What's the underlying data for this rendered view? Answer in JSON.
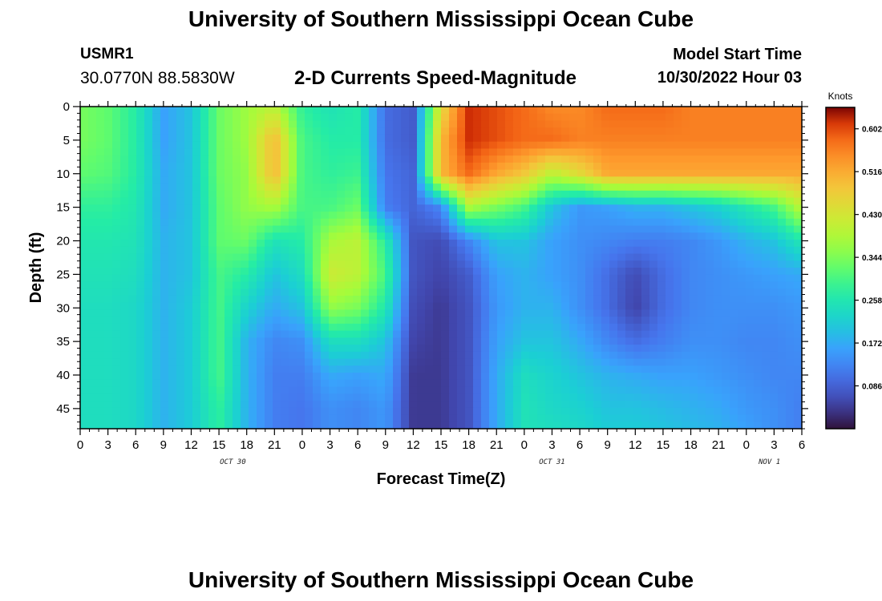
{
  "header": {
    "title": "University of Southern Mississippi Ocean Cube",
    "station_name": "USMR1",
    "station_coords": "30.0770N  88.5830W",
    "subtitle": "2-D Currents Speed-Magnitude",
    "model_start_label": "Model Start Time",
    "model_start_value": "10/30/2022 Hour 03"
  },
  "footer": {
    "title": "University of Southern Mississippi Ocean Cube"
  },
  "chart_data": {
    "type": "heatmap",
    "title": "2-D Currents Speed-Magnitude",
    "xlabel": "Forecast Time(Z)",
    "ylabel": "Depth (ft)",
    "x_unit": "hours from Oct 30 00Z",
    "x_range": [
      0,
      78
    ],
    "y_range": [
      0,
      48
    ],
    "y_inverted": true,
    "x_tick_values": [
      0,
      3,
      6,
      9,
      12,
      15,
      18,
      21,
      24,
      27,
      30,
      33,
      36,
      39,
      42,
      45,
      48,
      51,
      54,
      57,
      60,
      63,
      66,
      69,
      72,
      75,
      78
    ],
    "x_tick_labels": [
      "0",
      "3",
      "6",
      "9",
      "12",
      "15",
      "18",
      "21",
      "0",
      "3",
      "6",
      "9",
      "12",
      "15",
      "18",
      "21",
      "0",
      "3",
      "6",
      "9",
      "12",
      "15",
      "18",
      "21",
      "0",
      "3",
      "6"
    ],
    "y_tick_values": [
      0,
      5,
      10,
      15,
      20,
      25,
      30,
      35,
      40,
      45
    ],
    "y_tick_labels": [
      "0",
      "5",
      "10",
      "15",
      "20",
      "25",
      "30",
      "35",
      "40",
      "45"
    ],
    "date_labels": [
      {
        "text": "OCT 30",
        "x": 16.5
      },
      {
        "text": "OCT 31",
        "x": 51
      },
      {
        "text": "NOV 1",
        "x": 74.5
      }
    ],
    "colorbar": {
      "units": "Knots",
      "min": 0.0,
      "max": 0.645,
      "ticks": [
        0.602,
        0.516,
        0.43,
        0.344,
        0.258,
        0.172,
        0.086
      ],
      "tick_labels": [
        "0.602",
        "0.516",
        "0.430",
        "0.344",
        "0.258",
        "0.172",
        "0.086"
      ],
      "colormap": "turbo"
    },
    "depths": [
      0,
      5,
      10,
      15,
      20,
      25,
      30,
      35,
      40,
      45,
      48
    ],
    "times": [
      0,
      3,
      6,
      9,
      12,
      15,
      18,
      21,
      24,
      27,
      30,
      33,
      36,
      39,
      42,
      45,
      48,
      51,
      54,
      57,
      60,
      63,
      66,
      69,
      72,
      75,
      78
    ],
    "values": [
      [
        0.34,
        0.32,
        0.27,
        0.16,
        0.2,
        0.33,
        0.37,
        0.4,
        0.28,
        0.25,
        0.27,
        0.1,
        0.08,
        0.45,
        0.62,
        0.6,
        0.58,
        0.55,
        0.55,
        0.58,
        0.58,
        0.58,
        0.56,
        0.56,
        0.56,
        0.56,
        0.56
      ],
      [
        0.34,
        0.32,
        0.27,
        0.16,
        0.2,
        0.33,
        0.37,
        0.5,
        0.3,
        0.27,
        0.27,
        0.1,
        0.08,
        0.5,
        0.62,
        0.6,
        0.58,
        0.58,
        0.56,
        0.56,
        0.56,
        0.56,
        0.56,
        0.56,
        0.56,
        0.56,
        0.56
      ],
      [
        0.32,
        0.31,
        0.27,
        0.17,
        0.2,
        0.33,
        0.36,
        0.5,
        0.3,
        0.28,
        0.29,
        0.11,
        0.09,
        0.5,
        0.58,
        0.52,
        0.48,
        0.4,
        0.45,
        0.52,
        0.52,
        0.52,
        0.52,
        0.52,
        0.52,
        0.52,
        0.52
      ],
      [
        0.28,
        0.28,
        0.26,
        0.17,
        0.2,
        0.32,
        0.36,
        0.38,
        0.3,
        0.3,
        0.33,
        0.12,
        0.09,
        0.13,
        0.38,
        0.34,
        0.3,
        0.2,
        0.15,
        0.16,
        0.18,
        0.18,
        0.2,
        0.22,
        0.26,
        0.3,
        0.4
      ],
      [
        0.26,
        0.26,
        0.25,
        0.18,
        0.2,
        0.32,
        0.33,
        0.25,
        0.27,
        0.38,
        0.4,
        0.27,
        0.07,
        0.06,
        0.13,
        0.2,
        0.2,
        0.16,
        0.14,
        0.13,
        0.12,
        0.12,
        0.13,
        0.15,
        0.18,
        0.2,
        0.26
      ],
      [
        0.25,
        0.25,
        0.24,
        0.18,
        0.2,
        0.3,
        0.27,
        0.2,
        0.24,
        0.42,
        0.4,
        0.3,
        0.07,
        0.05,
        0.08,
        0.16,
        0.18,
        0.16,
        0.14,
        0.1,
        0.06,
        0.1,
        0.13,
        0.14,
        0.15,
        0.16,
        0.17
      ],
      [
        0.24,
        0.24,
        0.23,
        0.18,
        0.21,
        0.3,
        0.22,
        0.17,
        0.2,
        0.36,
        0.34,
        0.26,
        0.06,
        0.04,
        0.07,
        0.15,
        0.18,
        0.18,
        0.14,
        0.1,
        0.05,
        0.1,
        0.13,
        0.14,
        0.14,
        0.14,
        0.15
      ],
      [
        0.24,
        0.24,
        0.23,
        0.18,
        0.21,
        0.3,
        0.18,
        0.13,
        0.14,
        0.24,
        0.24,
        0.2,
        0.05,
        0.04,
        0.07,
        0.16,
        0.2,
        0.2,
        0.17,
        0.13,
        0.1,
        0.12,
        0.14,
        0.14,
        0.13,
        0.13,
        0.14
      ],
      [
        0.24,
        0.24,
        0.23,
        0.18,
        0.21,
        0.3,
        0.18,
        0.12,
        0.12,
        0.17,
        0.16,
        0.17,
        0.04,
        0.04,
        0.07,
        0.17,
        0.24,
        0.22,
        0.2,
        0.18,
        0.17,
        0.16,
        0.16,
        0.15,
        0.14,
        0.13,
        0.13
      ],
      [
        0.24,
        0.24,
        0.23,
        0.18,
        0.21,
        0.28,
        0.18,
        0.12,
        0.11,
        0.14,
        0.13,
        0.15,
        0.04,
        0.04,
        0.07,
        0.17,
        0.25,
        0.23,
        0.22,
        0.2,
        0.2,
        0.19,
        0.18,
        0.17,
        0.15,
        0.14,
        0.12
      ],
      [
        0.24,
        0.24,
        0.23,
        0.18,
        0.21,
        0.28,
        0.18,
        0.12,
        0.11,
        0.14,
        0.13,
        0.15,
        0.04,
        0.04,
        0.07,
        0.17,
        0.25,
        0.24,
        0.23,
        0.21,
        0.21,
        0.2,
        0.19,
        0.18,
        0.16,
        0.14,
        0.12
      ]
    ]
  }
}
